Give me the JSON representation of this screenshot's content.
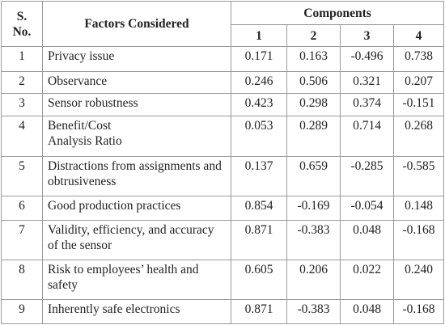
{
  "table": {
    "header": {
      "sno": "S.\nNo.",
      "factors": "Factors Considered",
      "components": "Components",
      "component_numbers": [
        "1",
        "2",
        "3",
        "4"
      ]
    },
    "rows": [
      [
        "1",
        "Privacy issue",
        "0.171",
        "0.163",
        "-0.496",
        "0.738"
      ],
      [
        "2",
        "Observance",
        "0.246",
        "0.506",
        "0.321",
        "0.207"
      ],
      [
        "3",
        "Sensor robustness",
        "0.423",
        "0.298",
        "0.374",
        "-0.151"
      ],
      [
        "4",
        "Benefit/Cost\nAnalysis Ratio",
        "0.053",
        "0.289",
        "0.714",
        "0.268"
      ],
      [
        "5",
        "Distractions from assignments and obtrusiveness",
        "0.137",
        "0.659",
        "-0.285",
        "-0.585"
      ],
      [
        "6",
        "Good production practices",
        "0.854",
        "-0.169",
        "-0.054",
        "0.148"
      ],
      [
        "7",
        "Validity, efficiency, and accuracy of the sensor",
        "0.871",
        "-0.383",
        "0.048",
        "-0.168"
      ],
      [
        "8",
        "Risk to employees’ health and safety",
        "0.605",
        "0.206",
        "0.022",
        "0.240"
      ],
      [
        "9",
        "Inherently safe electronics",
        "0.871",
        "-0.383",
        "0.048",
        "-0.168"
      ]
    ]
  }
}
